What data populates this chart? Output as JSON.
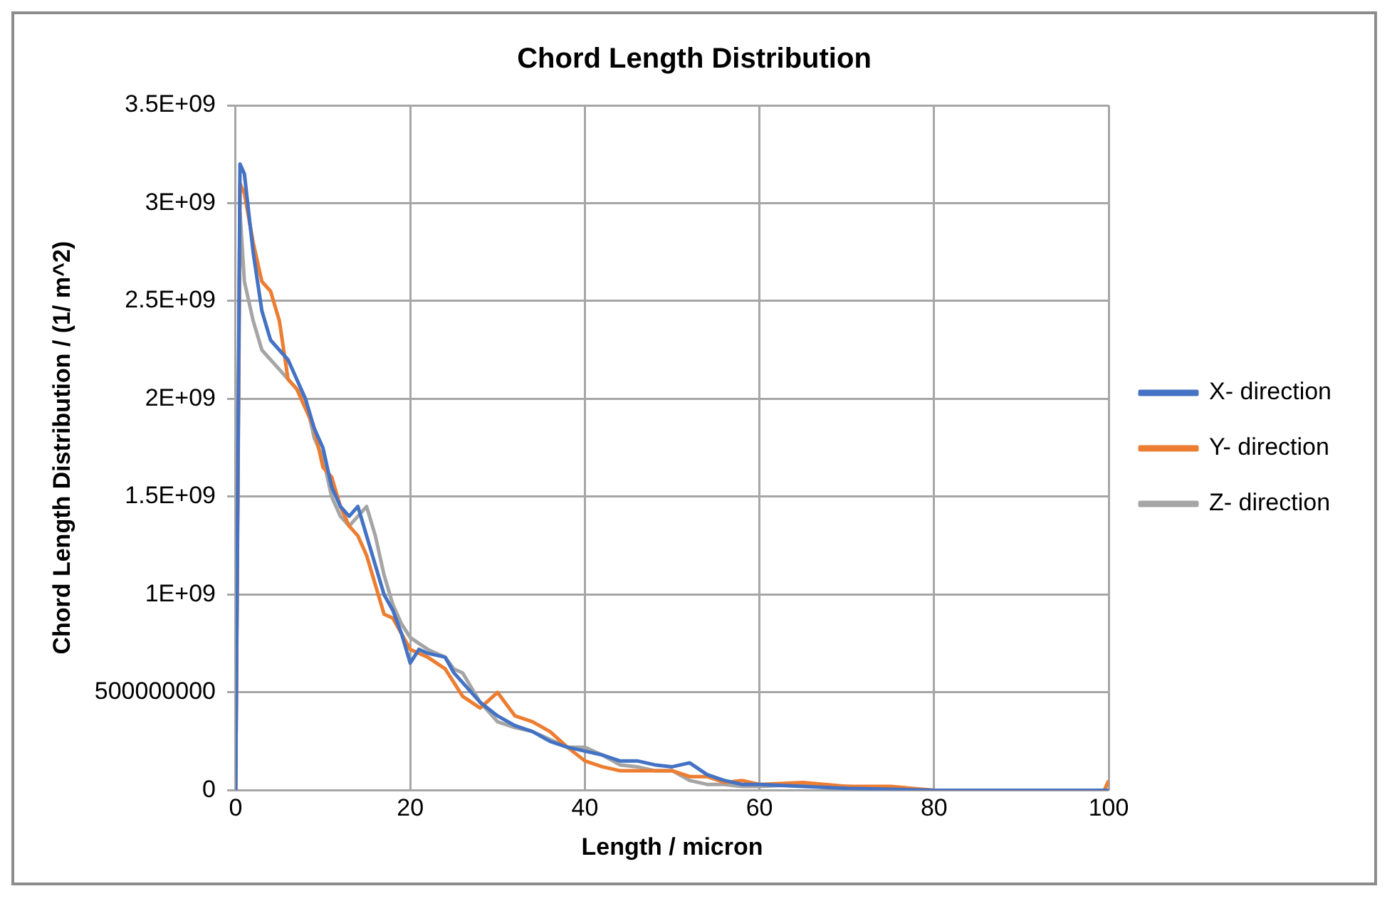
{
  "chart_data": {
    "type": "line",
    "title": "Chord Length Distribution",
    "xlabel": "Length / micron",
    "ylabel": "Chord Length Distribution / (1/ m^2)",
    "xlim": [
      0,
      100
    ],
    "xticks": [
      0,
      20,
      40,
      60,
      80,
      100
    ],
    "ylim": [
      0,
      3500000000
    ],
    "yticks": [
      0,
      500000000,
      {
        "value": 1000000000,
        "label": "1E+09"
      },
      {
        "value": 1500000000,
        "label": "1.5E+09"
      },
      {
        "value": 2000000000,
        "label": "2E+09"
      },
      {
        "value": 2500000000,
        "label": "2.5E+09"
      },
      {
        "value": 3000000000,
        "label": "3E+09"
      },
      {
        "value": 3500000000,
        "label": "3.5E+09"
      }
    ],
    "grid": true,
    "legend": "right",
    "marker": "none",
    "line_style": "solid",
    "series": [
      {
        "name": "X- direction",
        "color": "#4472c4",
        "x": [
          0,
          0.5,
          1,
          2,
          3,
          4,
          5,
          6,
          7,
          8,
          9,
          10,
          11,
          12,
          13,
          14,
          15,
          16,
          17,
          18,
          19,
          20,
          21,
          22,
          24,
          25,
          26,
          28,
          30,
          32,
          34,
          36,
          38,
          40,
          42,
          44,
          46,
          48,
          50,
          52,
          54,
          56,
          58,
          60,
          65,
          70,
          75,
          80,
          90,
          100
        ],
        "values": [
          0,
          3200000000.0,
          3150000000.0,
          2750000000.0,
          2450000000.0,
          2300000000.0,
          2250000000.0,
          2200000000.0,
          2100000000.0,
          2000000000.0,
          1850000000.0,
          1750000000.0,
          1550000000.0,
          1450000000.0,
          1400000000.0,
          1450000000.0,
          1300000000.0,
          1150000000.0,
          1000000000.0,
          920000000.0,
          800000000.0,
          650000000.0,
          720000000.0,
          700000000.0,
          680000000.0,
          600000000.0,
          550000000.0,
          450000000.0,
          380000000.0,
          330000000.0,
          300000000.0,
          250000000.0,
          220000000.0,
          200000000.0,
          180000000.0,
          150000000.0,
          150000000.0,
          130000000.0,
          120000000.0,
          140000000.0,
          80000000.0,
          50000000.0,
          30000000.0,
          30000000.0,
          20000000.0,
          10000000.0,
          5000000.0,
          0,
          0,
          0
        ]
      },
      {
        "name": "Y- direction",
        "color": "#ed7d31",
        "x": [
          0,
          0.5,
          1,
          2,
          3,
          4,
          5,
          6,
          7,
          8,
          9,
          10,
          11,
          12,
          13,
          14,
          15,
          16,
          17,
          18,
          19,
          20,
          21,
          22,
          24,
          25,
          26,
          28,
          30,
          32,
          34,
          36,
          38,
          40,
          42,
          44,
          46,
          48,
          50,
          52,
          54,
          56,
          58,
          60,
          65,
          70,
          75,
          80,
          90,
          99.5,
          100
        ],
        "values": [
          0,
          3100000000.0,
          3050000000.0,
          2800000000.0,
          2600000000.0,
          2550000000.0,
          2400000000.0,
          2100000000.0,
          2050000000.0,
          1950000000.0,
          1850000000.0,
          1650000000.0,
          1600000000.0,
          1450000000.0,
          1350000000.0,
          1300000000.0,
          1200000000.0,
          1050000000.0,
          900000000.0,
          880000000.0,
          800000000.0,
          720000000.0,
          700000000.0,
          680000000.0,
          620000000.0,
          550000000.0,
          480000000.0,
          420000000.0,
          500000000.0,
          380000000.0,
          350000000.0,
          300000000.0,
          220000000.0,
          150000000.0,
          120000000.0,
          100000000.0,
          100000000.0,
          100000000.0,
          100000000.0,
          70000000.0,
          70000000.0,
          40000000.0,
          50000000.0,
          30000000.0,
          40000000.0,
          20000000.0,
          20000000.0,
          0,
          0,
          0,
          50000000.0
        ]
      },
      {
        "name": "Z- direction",
        "color": "#a5a5a5",
        "x": [
          0,
          0.5,
          1,
          2,
          3,
          4,
          5,
          6,
          7,
          8,
          9,
          10,
          11,
          12,
          13,
          14,
          15,
          16,
          17,
          18,
          19,
          20,
          21,
          22,
          24,
          25,
          26,
          28,
          30,
          32,
          34,
          36,
          38,
          40,
          42,
          44,
          46,
          48,
          50,
          52,
          54,
          56,
          58,
          60,
          65,
          70,
          75,
          80,
          90,
          100
        ],
        "values": [
          0,
          2950000000.0,
          2600000000.0,
          2400000000.0,
          2250000000.0,
          2200000000.0,
          2150000000.0,
          2100000000.0,
          2050000000.0,
          2000000000.0,
          1800000000.0,
          1700000000.0,
          1500000000.0,
          1400000000.0,
          1350000000.0,
          1400000000.0,
          1450000000.0,
          1300000000.0,
          1100000000.0,
          950000000.0,
          850000000.0,
          780000000.0,
          750000000.0,
          720000000.0,
          680000000.0,
          620000000.0,
          600000000.0,
          450000000.0,
          350000000.0,
          320000000.0,
          300000000.0,
          260000000.0,
          220000000.0,
          220000000.0,
          180000000.0,
          130000000.0,
          120000000.0,
          100000000.0,
          100000000.0,
          50000000.0,
          30000000.0,
          30000000.0,
          20000000.0,
          20000000.0,
          30000000.0,
          20000000.0,
          10000000.0,
          0,
          0,
          0
        ]
      }
    ]
  }
}
